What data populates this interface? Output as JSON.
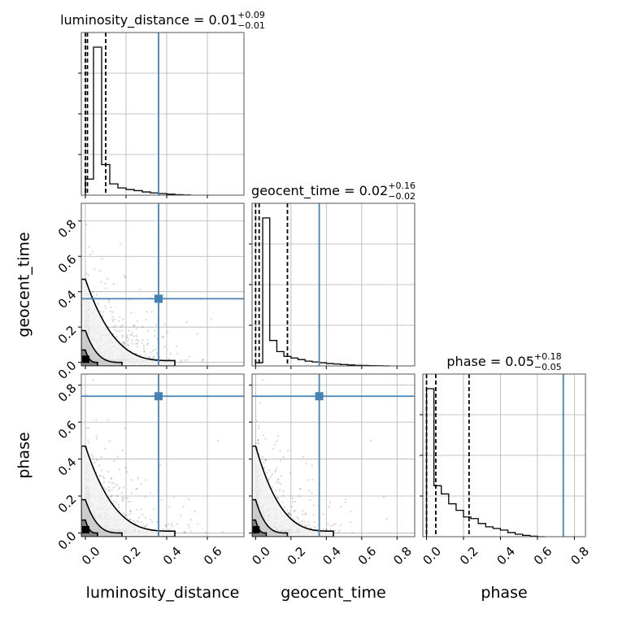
{
  "chart_data": {
    "type": "corner",
    "parameters": [
      "luminosity_distance",
      "geocent_time",
      "phase"
    ],
    "truths": {
      "luminosity_distance": 0.36,
      "geocent_time": 0.36,
      "phase": 0.74
    },
    "truth_color": "#4682b4",
    "axes": {
      "luminosity_distance": {
        "xlim": [
          -0.02,
          0.78
        ],
        "ticks": [
          0.0,
          0.2,
          0.4,
          0.6
        ],
        "tick_labels": [
          "0.0",
          "0.2",
          "0.4",
          "0.6"
        ]
      },
      "geocent_time": {
        "xlim": [
          -0.02,
          0.9
        ],
        "ticks": [
          0.0,
          0.2,
          0.4,
          0.6,
          0.8
        ],
        "tick_labels": [
          "0.0",
          "0.2",
          "0.4",
          "0.6",
          "0.8"
        ]
      },
      "phase": {
        "xlim": [
          -0.02,
          0.86
        ],
        "ticks": [
          0.0,
          0.2,
          0.4,
          0.6,
          0.8
        ],
        "tick_labels": [
          "0.0",
          "0.2",
          "0.4",
          "0.6",
          "0.8"
        ]
      }
    },
    "titles": [
      {
        "parameter": "luminosity_distance",
        "label": "luminosity_distance = 0.01",
        "plus": "+0.09",
        "minus": "−0.01"
      },
      {
        "parameter": "geocent_time",
        "label": "geocent_time = 0.02",
        "plus": "+0.16",
        "minus": "−0.02"
      },
      {
        "parameter": "phase",
        "label": "phase = 0.05",
        "plus": "+0.18",
        "minus": "−0.05"
      }
    ],
    "quantiles": {
      "luminosity_distance": [
        0.0,
        0.01,
        0.1
      ],
      "geocent_time": [
        0.0,
        0.02,
        0.18
      ],
      "phase": [
        0.0,
        0.05,
        0.23
      ]
    },
    "histograms": {
      "luminosity_distance": {
        "bins": [
          0.0,
          0.04,
          0.08,
          0.12,
          0.16,
          0.2,
          0.24,
          0.28,
          0.32,
          0.36,
          0.4,
          0.44,
          0.48
        ],
        "counts": [
          0.1,
          0.92,
          0.19,
          0.07,
          0.045,
          0.035,
          0.028,
          0.02,
          0.014,
          0.01,
          0.006,
          0.003,
          0.001
        ]
      },
      "geocent_time": {
        "bins": [
          0.0,
          0.04,
          0.08,
          0.12,
          0.16,
          0.2,
          0.24,
          0.28,
          0.32,
          0.36,
          0.4,
          0.44,
          0.48,
          0.52,
          0.56,
          0.6,
          0.64,
          0.68,
          0.72
        ],
        "counts": [
          0.02,
          0.93,
          0.16,
          0.09,
          0.06,
          0.05,
          0.04,
          0.03,
          0.025,
          0.02,
          0.015,
          0.012,
          0.009,
          0.006,
          0.004,
          0.003,
          0.002,
          0.001,
          0.0
        ]
      },
      "phase": {
        "bins": [
          0.0,
          0.04,
          0.08,
          0.12,
          0.16,
          0.2,
          0.24,
          0.28,
          0.32,
          0.36,
          0.4,
          0.44,
          0.48,
          0.52,
          0.56,
          0.6
        ],
        "counts": [
          0.9,
          0.31,
          0.26,
          0.2,
          0.16,
          0.12,
          0.11,
          0.08,
          0.06,
          0.05,
          0.04,
          0.025,
          0.015,
          0.008,
          0.003,
          0.0
        ]
      }
    },
    "grid": true,
    "show_datapoints": true,
    "show_contours": true
  }
}
